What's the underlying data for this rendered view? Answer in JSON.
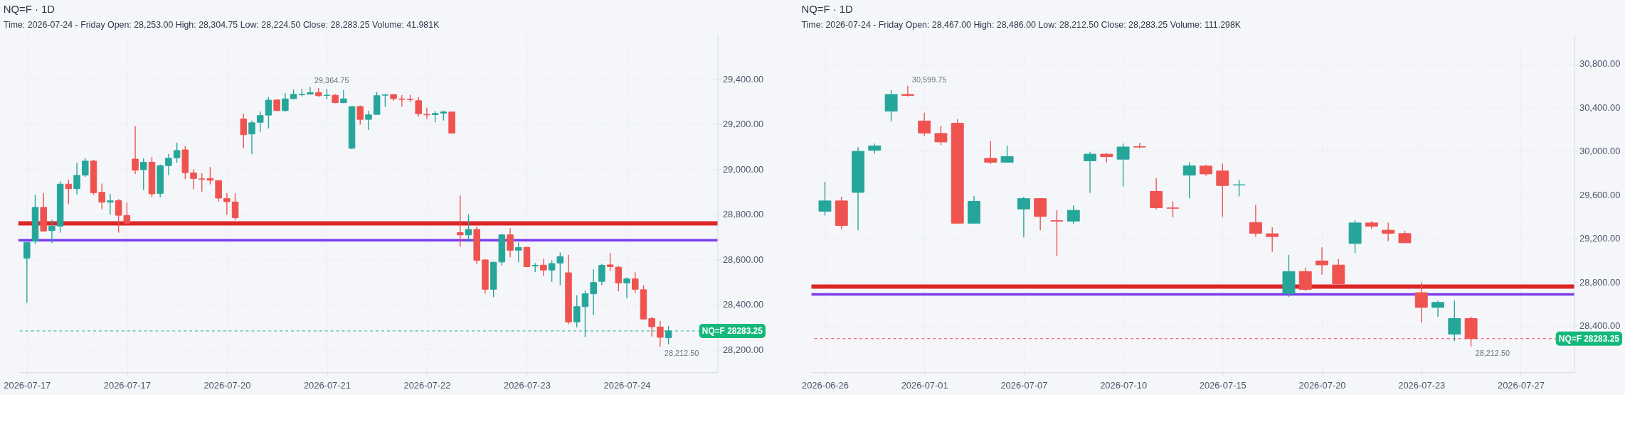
{
  "chart_data": [
    {
      "type": "candlestick",
      "title": "NQ=F · 1D",
      "subtitle": "Time: 2026-07-24 - Friday     Open: 28,253.00     High: 28,304.75     Low: 28,224.50     Close: 28,283.25     Volume: 41.981K",
      "categories": [
        "2026-07-17",
        null,
        null,
        null,
        null,
        null,
        null,
        null,
        null,
        null,
        null,
        null,
        "2026-07-17",
        null,
        null,
        null,
        null,
        null,
        null,
        null,
        null,
        null,
        null,
        null,
        "2026-07-20",
        null,
        null,
        null,
        null,
        null,
        null,
        null,
        null,
        null,
        null,
        null,
        "2026-07-21",
        null,
        null,
        null,
        null,
        null,
        null,
        null,
        null,
        null,
        null,
        null,
        "2026-07-22",
        null,
        null,
        null,
        null,
        null,
        null,
        null,
        null,
        null,
        null,
        null,
        "2026-07-23",
        null,
        null,
        null,
        null,
        null,
        null,
        null,
        null,
        null,
        null,
        null,
        "2026-07-24",
        null,
        null,
        null,
        null,
        null
      ],
      "ohlc": [
        [
          28606,
          28676,
          28409,
          28676
        ],
        [
          28681,
          28886,
          28668,
          28831
        ],
        [
          28831,
          28894,
          28723,
          28726
        ],
        [
          28728,
          28776,
          28673,
          28748
        ],
        [
          28748,
          28946,
          28719,
          28934
        ],
        [
          28934,
          28954,
          28846,
          28914
        ],
        [
          28914,
          29028,
          28888,
          28973
        ],
        [
          28974,
          29049,
          28966,
          29036
        ],
        [
          29036,
          29042,
          28886,
          28896
        ],
        [
          28898,
          28936,
          28823,
          28854
        ],
        [
          28854,
          28891,
          28799,
          28860
        ],
        [
          28861,
          28868,
          28719,
          28796
        ],
        [
          28795,
          28852,
          28750,
          28761
        ],
        [
          29045,
          29191,
          28979,
          28996
        ],
        [
          28998,
          29049,
          28908,
          29031
        ],
        [
          29031,
          29054,
          28876,
          28891
        ],
        [
          28893,
          29021,
          28876,
          29016
        ],
        [
          29016,
          29068,
          28974,
          29049
        ],
        [
          29051,
          29118,
          29029,
          29083
        ],
        [
          29086,
          29102,
          28956,
          28985
        ],
        [
          28984,
          28999,
          28911,
          28959
        ],
        [
          28957,
          28984,
          28901,
          28956
        ],
        [
          28959,
          29010,
          28933,
          28951
        ],
        [
          28950,
          28950,
          28856,
          28872
        ],
        [
          28870,
          28894,
          28799,
          28856
        ],
        [
          28855,
          28894,
          28774,
          28785
        ],
        [
          29223,
          29246,
          29093,
          29153
        ],
        [
          29156,
          29216,
          29066,
          29206
        ],
        [
          29208,
          29256,
          29164,
          29238
        ],
        [
          29240,
          29320,
          29181,
          29306
        ],
        [
          29307,
          29309,
          29258,
          29260
        ],
        [
          29260,
          29338,
          29255,
          29312
        ],
        [
          29313,
          29353,
          29310,
          29332
        ],
        [
          29331,
          29356,
          29324,
          29333
        ],
        [
          29333,
          29364.75,
          29331,
          29340
        ],
        [
          29340,
          29360,
          29321,
          29326
        ],
        [
          29327,
          29356,
          29311,
          29328
        ],
        [
          29328,
          29334,
          29293,
          29295
        ],
        [
          29295,
          29351,
          29293,
          29312
        ],
        [
          29093,
          29278,
          29089,
          29278
        ],
        [
          29278,
          29283,
          29198,
          29221
        ],
        [
          29221,
          29259,
          29174,
          29241
        ],
        [
          29243,
          29343,
          29243,
          29326
        ],
        [
          29328,
          29334,
          29276,
          29330
        ],
        [
          29331,
          29334,
          29303,
          29313
        ],
        [
          29312,
          29328,
          29278,
          29310
        ],
        [
          29311,
          29330,
          29298,
          29309
        ],
        [
          29304,
          29320,
          29234,
          29246
        ],
        [
          29243,
          29273,
          29224,
          29241
        ],
        [
          29242,
          29258,
          29208,
          29247
        ],
        [
          29249,
          29260,
          29216,
          29254
        ],
        [
          29254,
          29254,
          29158,
          29160
        ],
        [
          28719,
          28884,
          28656,
          28709
        ],
        [
          28709,
          28800,
          28678,
          28733
        ],
        [
          28733,
          28746,
          28578,
          28596
        ],
        [
          28598,
          28603,
          28449,
          28468
        ],
        [
          28468,
          28588,
          28433,
          28588
        ],
        [
          28589,
          28713,
          28573,
          28709
        ],
        [
          28709,
          28738,
          28609,
          28641
        ],
        [
          28641,
          28676,
          28588,
          28653
        ],
        [
          28654,
          28656,
          28566,
          28568
        ],
        [
          28571,
          28584,
          28544,
          28574
        ],
        [
          28575,
          28603,
          28526,
          28553
        ],
        [
          28553,
          28596,
          28501,
          28582
        ],
        [
          28584,
          28631,
          28486,
          28613
        ],
        [
          28541,
          28621,
          28314,
          28323
        ],
        [
          28323,
          28441,
          28299,
          28391
        ],
        [
          28391,
          28461,
          28256,
          28448
        ],
        [
          28448,
          28556,
          28354,
          28498
        ],
        [
          28503,
          28581,
          28486,
          28574
        ],
        [
          28576,
          28629,
          28549,
          28568
        ],
        [
          28566,
          28571,
          28459,
          28496
        ],
        [
          28496,
          28521,
          28428,
          28514
        ],
        [
          28514,
          28544,
          28451,
          28468
        ],
        [
          28466,
          28486,
          28334,
          28336
        ],
        [
          28338,
          28346,
          28259,
          28302
        ],
        [
          28301,
          28328,
          28212.5,
          28255
        ],
        [
          28253,
          28304.75,
          28224.5,
          28283.25
        ]
      ],
      "colors": [
        "#26a69a",
        "#26a69a",
        "#ef5350",
        "#26a69a",
        "#26a69a",
        "#ef5350",
        "#26a69a",
        "#26a69a",
        "#ef5350",
        "#ef5350",
        "#26a69a",
        "#ef5350",
        "#ef5350",
        "#ef5350",
        "#26a69a",
        "#ef5350",
        "#26a69a",
        "#26a69a",
        "#26a69a",
        "#ef5350",
        "#ef5350",
        "#ef5350",
        "#ef5350",
        "#ef5350",
        "#ef5350",
        "#ef5350",
        "#ef5350",
        "#26a69a",
        "#26a69a",
        "#26a69a",
        "#ef5350",
        "#26a69a",
        "#26a69a",
        "#26a69a",
        "#26a69a",
        "#ef5350",
        "#26a69a",
        "#ef5350",
        "#26a69a",
        "#26a69a",
        "#ef5350",
        "#26a69a",
        "#26a69a",
        "#26a69a",
        "#ef5350",
        "#ef5350",
        "#ef5350",
        "#ef5350",
        "#ef5350",
        "#26a69a",
        "#26a69a",
        "#ef5350",
        "#ef5350",
        "#26a69a",
        "#ef5350",
        "#ef5350",
        "#26a69a",
        "#26a69a",
        "#ef5350",
        "#26a69a",
        "#ef5350",
        "#26a69a",
        "#ef5350",
        "#26a69a",
        "#26a69a",
        "#ef5350",
        "#26a69a",
        "#26a69a",
        "#26a69a",
        "#26a69a",
        "#ef5350",
        "#ef5350",
        "#26a69a",
        "#ef5350",
        "#ef5350",
        "#ef5350",
        "#ef5350",
        "#26a69a"
      ],
      "ylim": [
        28100,
        29600
      ],
      "yticks": [
        {
          "value": 28200,
          "label": "28,200.00"
        },
        {
          "value": 28400,
          "label": "28,400.00"
        },
        {
          "value": 28600,
          "label": "28,600.00"
        },
        {
          "value": 28800,
          "label": "28,800.00"
        },
        {
          "value": 29000,
          "label": "29,000.00"
        },
        {
          "value": 29200,
          "label": "29,200.00"
        },
        {
          "value": 29400,
          "label": "29,400.00"
        }
      ],
      "grid": true,
      "ref_lines": [
        {
          "axis": "y",
          "value": 28760,
          "color": "#dc2626"
        },
        {
          "axis": "y",
          "value": 28685,
          "color": "#7c3aed"
        },
        {
          "axis": "y",
          "value": 28283.25,
          "label": "NQ=F 28283.25",
          "color": "#22ab94",
          "line_style": "dashed"
        }
      ],
      "annotations": [
        "29,364.75",
        "28,212.50"
      ]
    },
    {
      "type": "candlestick",
      "title": "NQ=F · 1D",
      "subtitle": "Time: 2026-07-24 - Friday     Open: 28,467.00     High: 28,486.00     Low: 28,212.50     Close: 28,283.25     Volume: 111.298K",
      "categories": [
        "2026-06-26",
        null,
        null,
        null,
        null,
        null,
        "2026-07-01",
        null,
        null,
        null,
        null,
        null,
        "2026-07-07",
        null,
        null,
        null,
        null,
        null,
        "2026-07-10",
        null,
        null,
        null,
        null,
        null,
        "2026-07-15",
        null,
        null,
        null,
        null,
        null,
        "2026-07-20",
        null,
        null,
        null,
        null,
        null,
        "2026-07-23",
        null,
        null,
        null,
        null,
        null,
        "2026-07-27"
      ],
      "ohlc": [
        [
          29450,
          29720,
          29412,
          29545
        ],
        [
          29545,
          29583,
          29286,
          29320
        ],
        [
          29623,
          30037,
          29275,
          29999
        ],
        [
          30009,
          30070,
          29978,
          30049
        ],
        [
          30368,
          30560,
          30273,
          30520
        ],
        [
          30520,
          30599.75,
          30501,
          30511
        ],
        [
          30277,
          30353,
          30140,
          30167
        ],
        [
          30163,
          30231,
          30058,
          30085
        ],
        [
          30256,
          30294,
          29332,
          29341
        ],
        [
          29341,
          29589,
          29336,
          29541
        ],
        [
          29935,
          30094,
          29883,
          29899
        ],
        [
          29899,
          30049,
          29899,
          29952
        ],
        [
          29471,
          29581,
          29210,
          29566
        ],
        [
          29566,
          29570,
          29275,
          29402
        ],
        [
          29364,
          29459,
          29039,
          29360
        ],
        [
          29360,
          29503,
          29334,
          29459
        ],
        [
          29912,
          29994,
          29619,
          29973
        ],
        [
          29973,
          29984,
          29899,
          29950
        ],
        [
          29927,
          30070,
          29678,
          30039
        ],
        [
          30042,
          30077,
          30026,
          30038
        ],
        [
          29632,
          29752,
          29467,
          29482
        ],
        [
          29480,
          29541,
          29395,
          29478
        ],
        [
          29781,
          29899,
          29568,
          29866
        ],
        [
          29864,
          29876,
          29775,
          29792
        ],
        [
          29819,
          29889,
          29398,
          29686
        ],
        [
          29690,
          29739,
          29587,
          29693
        ],
        [
          29347,
          29509,
          29218,
          29248
        ],
        [
          29244,
          29303,
          29079,
          29218
        ],
        [
          28697,
          29050,
          28666,
          28898
        ],
        [
          28898,
          28934,
          28718,
          28733
        ],
        [
          28995,
          29119,
          28870,
          28959
        ],
        [
          28957,
          29012,
          28775,
          28786
        ],
        [
          29155,
          29366,
          29066,
          29343
        ],
        [
          29343,
          29360,
          29288,
          29313
        ],
        [
          29277,
          29345,
          29176,
          29248
        ],
        [
          29246,
          29271,
          29161,
          29161
        ],
        [
          28704,
          28797,
          28432,
          28569
        ],
        [
          28569,
          28632,
          28484,
          28615
        ],
        [
          28324,
          28632,
          28261,
          28467
        ],
        [
          28467,
          28486,
          28212.5,
          28283.25
        ],
        null,
        null,
        null
      ],
      "colors": [
        "#26a69a",
        "#ef5350",
        "#26a69a",
        "#26a69a",
        "#26a69a",
        "#ef5350",
        "#ef5350",
        "#ef5350",
        "#ef5350",
        "#26a69a",
        "#ef5350",
        "#26a69a",
        "#26a69a",
        "#ef5350",
        "#ef5350",
        "#26a69a",
        "#26a69a",
        "#ef5350",
        "#26a69a",
        "#ef5350",
        "#ef5350",
        "#ef5350",
        "#26a69a",
        "#ef5350",
        "#ef5350",
        "#26a69a",
        "#ef5350",
        "#ef5350",
        "#26a69a",
        "#ef5350",
        "#ef5350",
        "#ef5350",
        "#26a69a",
        "#ef5350",
        "#ef5350",
        "#ef5350",
        "#ef5350",
        "#26a69a",
        "#26a69a",
        "#ef5350",
        null,
        null,
        null
      ],
      "ylim": [
        27975,
        31075
      ],
      "yticks": [
        {
          "value": 28400,
          "label": "28,400.00"
        },
        {
          "value": 28800,
          "label": "28,800.00"
        },
        {
          "value": 29200,
          "label": "29,200.00"
        },
        {
          "value": 29600,
          "label": "29,600.00"
        },
        {
          "value": 30000,
          "label": "30,000.00"
        },
        {
          "value": 30400,
          "label": "30,400.00"
        },
        {
          "value": 30800,
          "label": "30,800.00"
        }
      ],
      "grid": true,
      "ref_lines": [
        {
          "axis": "y",
          "value": 28760,
          "color": "#dc2626"
        },
        {
          "axis": "y",
          "value": 28688,
          "color": "#7c3aed"
        },
        {
          "axis": "y",
          "value": 28283.25,
          "label": "NQ=F 28283.25",
          "color": "#f23645",
          "line_style": "dashed"
        }
      ],
      "annotations": [
        "30,599.75",
        "28,212.50"
      ]
    }
  ]
}
